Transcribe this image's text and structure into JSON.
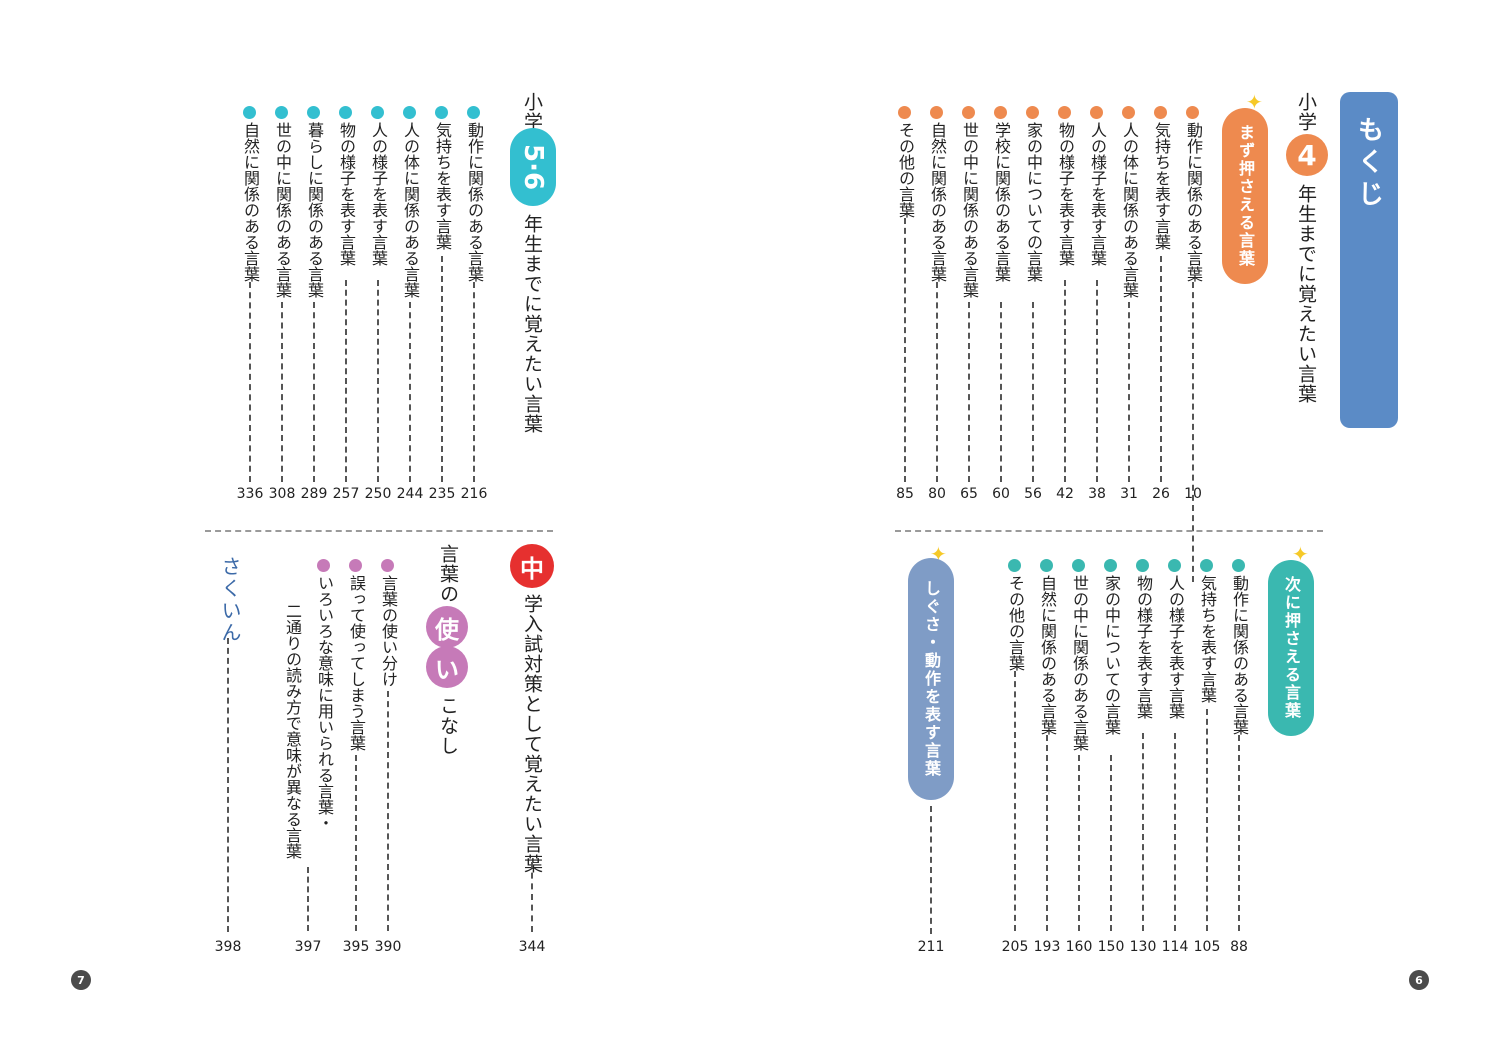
{
  "mokuji": "もくじ",
  "grade4": {
    "prefix": "小学",
    "num": "4",
    "suffix": "年生までに覚えたい言葉",
    "must": {
      "label": "まず押さえる言葉",
      "items": [
        {
          "t": "動作に関係のある言葉",
          "p": "10"
        },
        {
          "t": "気持ちを表す言葉",
          "p": "26"
        },
        {
          "t": "人の体に関係のある言葉",
          "p": "31"
        },
        {
          "t": "人の様子を表す言葉",
          "p": "38"
        },
        {
          "t": "物の様子を表す言葉",
          "p": "42"
        },
        {
          "t": "家の中についての言葉",
          "p": "56"
        },
        {
          "t": "学校に関係のある言葉",
          "p": "60"
        },
        {
          "t": "世の中に関係のある言葉",
          "p": "65"
        },
        {
          "t": "自然に関係のある言葉",
          "p": "80"
        },
        {
          "t": "その他の言葉",
          "p": "85"
        }
      ]
    },
    "next": {
      "label": "次に押さえる言葉",
      "items": [
        {
          "t": "動作に関係のある言葉",
          "p": "88"
        },
        {
          "t": "気持ちを表す言葉",
          "p": "105"
        },
        {
          "t": "人の様子を表す言葉",
          "p": "114"
        },
        {
          "t": "物の様子を表す言葉",
          "p": "130"
        },
        {
          "t": "家の中についての言葉",
          "p": "150"
        },
        {
          "t": "世の中に関係のある言葉",
          "p": "160"
        },
        {
          "t": "自然に関係のある言葉",
          "p": "193"
        },
        {
          "t": "その他の言葉",
          "p": "205"
        }
      ]
    },
    "shigusa": {
      "label": "しぐさ・動作を表す言葉",
      "p": "211"
    }
  },
  "grade56": {
    "prefix": "小学",
    "num": "5·6",
    "suffix": "年生までに覚えたい言葉",
    "items": [
      {
        "t": "動作に関係のある言葉",
        "p": "216"
      },
      {
        "t": "気持ちを表す言葉",
        "p": "235"
      },
      {
        "t": "人の体に関係のある言葉",
        "p": "244"
      },
      {
        "t": "人の様子を表す言葉",
        "p": "250"
      },
      {
        "t": "物の様子を表す言葉",
        "p": "257"
      },
      {
        "t": "暮らしに関係のある言葉",
        "p": "289"
      },
      {
        "t": "世の中に関係のある言葉",
        "p": "308"
      },
      {
        "t": "自然に関係のある言葉",
        "p": "336"
      }
    ]
  },
  "chu": {
    "badge": "中",
    "title": "学入試対策として覚えたい言葉",
    "p": "344"
  },
  "tsukai": {
    "pre": "言葉の",
    "c1": "使",
    "c2": "い",
    "post": "こなし",
    "items": [
      {
        "t": "言葉の使い分け",
        "p": "390"
      },
      {
        "t": "誤って使ってしまう言葉",
        "p": "395"
      },
      {
        "t": "いろいろな意味に用いられる言葉・",
        "t2": "二通りの読み方で意味が異なる言葉",
        "p": "397"
      }
    ]
  },
  "sakuin": {
    "label": "さくいん",
    "p": "398"
  },
  "pages": {
    "left": "7",
    "right": "6"
  },
  "colors": {
    "blue": "#5b8bc6",
    "orange": "#ee8a4f",
    "teal": "#3ab8b0",
    "cyan": "#33bfd0",
    "red": "#e6302f",
    "pink": "#c67ab8",
    "slate": "#7f9cc6"
  }
}
